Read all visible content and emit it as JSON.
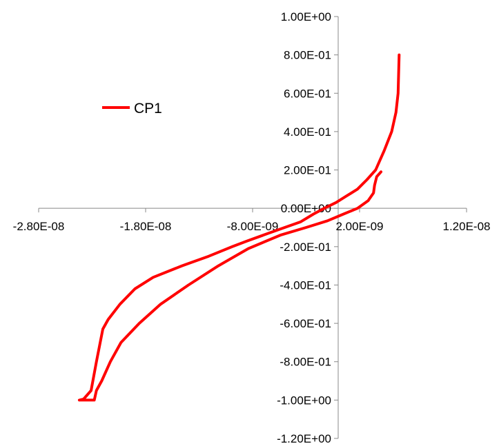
{
  "chart_data": {
    "type": "line",
    "title": "",
    "xlabel": "",
    "ylabel": "",
    "xlim": [
      -2.8e-08,
      1.2e-08
    ],
    "ylim": [
      -1.2,
      1.0
    ],
    "x_ticks": [
      -2.8e-08,
      -1.8e-08,
      -8e-09,
      2e-09,
      1.2e-08
    ],
    "x_tick_labels": [
      "-2.80E-08",
      "-1.80E-08",
      "-8.00E-09",
      "2.00E-09",
      "1.20E-08"
    ],
    "y_ticks": [
      1.0,
      0.8,
      0.6,
      0.4,
      0.2,
      0.0,
      -0.2,
      -0.4,
      -0.6,
      -0.8,
      -1.0,
      -1.2
    ],
    "y_tick_labels": [
      "1.00E+00",
      "8.00E-01",
      "6.00E-01",
      "4.00E-01",
      "2.00E-01",
      "0.00E+00",
      "-2.00E-01",
      "-4.00E-01",
      "-6.00E-01",
      "-8.00E-01",
      "-1.00E+00",
      "-1.20E+00"
    ],
    "grid": false,
    "legend_position": "top-left",
    "series": [
      {
        "name": "CP1",
        "color": "#ff0000",
        "points": [
          [
            5.7e-09,
            0.8
          ],
          [
            5.6e-09,
            0.6
          ],
          [
            5.4e-09,
            0.5
          ],
          [
            5e-09,
            0.4
          ],
          [
            4.3e-09,
            0.3
          ],
          [
            3.5e-09,
            0.2
          ],
          [
            2.7e-09,
            0.15
          ],
          [
            1.8e-09,
            0.1
          ],
          [
            8e-10,
            0.065
          ],
          [
            -2e-10,
            0.03
          ],
          [
            -1.3e-09,
            0.0
          ],
          [
            -2.3e-09,
            -0.03
          ],
          [
            -3.5e-09,
            -0.07
          ],
          [
            -5e-09,
            -0.1
          ],
          [
            -6.5e-09,
            -0.13
          ],
          [
            -8.5e-09,
            -0.17
          ],
          [
            -9.9e-09,
            -0.2
          ],
          [
            -1.21e-08,
            -0.25
          ],
          [
            -1.46e-08,
            -0.3
          ],
          [
            -1.73e-08,
            -0.36
          ],
          [
            -1.9e-08,
            -0.42
          ],
          [
            -2.04e-08,
            -0.5
          ],
          [
            -2.15e-08,
            -0.58
          ],
          [
            -2.2e-08,
            -0.63
          ],
          [
            -2.26e-08,
            -0.8
          ],
          [
            -2.31e-08,
            -0.95
          ],
          [
            -2.38e-08,
            -0.995
          ],
          [
            -2.42e-08,
            -1.0
          ],
          [
            -2.28e-08,
            -1.0
          ],
          [
            -2.26e-08,
            -0.95
          ],
          [
            -2.21e-08,
            -0.9
          ],
          [
            -2.13e-08,
            -0.8
          ],
          [
            -2.03e-08,
            -0.7
          ],
          [
            -1.86e-08,
            -0.6
          ],
          [
            -1.66e-08,
            -0.5
          ],
          [
            -1.4e-08,
            -0.4
          ],
          [
            -1.12e-08,
            -0.3
          ],
          [
            -8.4e-09,
            -0.21
          ],
          [
            -5.4e-09,
            -0.14
          ],
          [
            -3e-09,
            -0.1
          ],
          [
            -1e-09,
            -0.065
          ],
          [
            5e-10,
            -0.03
          ],
          [
            1.8e-09,
            0.0
          ],
          [
            2.8e-09,
            0.04
          ],
          [
            3.3e-09,
            0.08
          ],
          [
            3.4e-09,
            0.12
          ],
          [
            3.6e-09,
            0.165
          ],
          [
            4e-09,
            0.19
          ]
        ]
      }
    ]
  }
}
